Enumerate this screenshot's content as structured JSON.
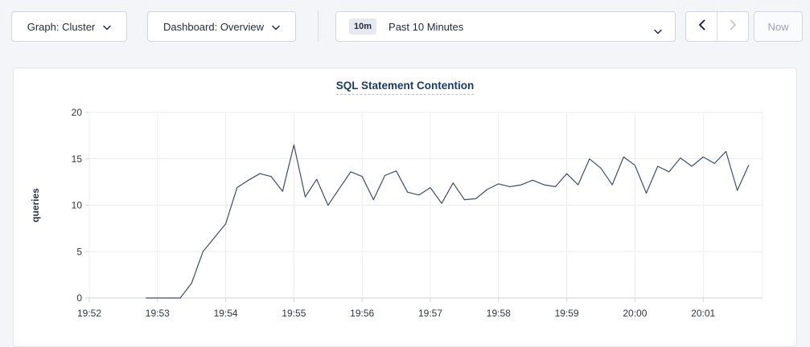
{
  "page": {
    "background": "#f4f5f9"
  },
  "toolbar": {
    "graph_dropdown": {
      "label": "Graph: Cluster",
      "icon": "chevron-down-icon"
    },
    "dashboard_dropdown": {
      "label": "Dashboard: Overview",
      "icon": "chevron-down-icon"
    },
    "time_picker": {
      "badge": "10m",
      "label": "Past 10 Minutes",
      "icon": "chevron-down-icon"
    },
    "prev_button": {
      "icon": "chevron-left-icon",
      "enabled": true
    },
    "next_button": {
      "icon": "chevron-right-icon",
      "enabled": false
    },
    "now_button": {
      "label": "Now",
      "enabled": false
    }
  },
  "chart_data": {
    "type": "line",
    "title": "SQL Statement Contention",
    "xlabel": "",
    "ylabel": "queries",
    "ylim": [
      0,
      20
    ],
    "yticks": [
      0,
      5,
      10,
      15,
      20
    ],
    "xticks": [
      "19:52",
      "19:53",
      "19:54",
      "19:55",
      "19:56",
      "19:57",
      "19:58",
      "19:59",
      "20:00",
      "20:01"
    ],
    "grid": true,
    "legend": "none",
    "series": [
      {
        "name": "SQL Statement Contention",
        "start_time": "19:52:50",
        "interval_seconds": 10,
        "values": [
          0,
          0,
          0,
          0,
          1.6,
          5,
          6.5,
          8,
          11.9,
          12.7,
          13.4,
          13.1,
          11.5,
          16.5,
          10.9,
          12.8,
          10,
          11.8,
          13.6,
          13.1,
          10.6,
          13.2,
          13.7,
          11.4,
          11.1,
          11.9,
          10.2,
          12.4,
          10.6,
          10.7,
          11.7,
          12.3,
          12,
          12.2,
          12.7,
          12.2,
          12,
          13.4,
          12.2,
          15,
          14,
          12.2,
          15.2,
          14.3,
          11.3,
          14.2,
          13.6,
          15.1,
          14.2,
          15.2,
          14.5,
          15.8,
          11.6,
          14.3
        ]
      }
    ],
    "colors": {
      "line": "#414c66",
      "grid": "#ececec",
      "axis": "#d2d5db",
      "title": "#1f3a66",
      "tick_label": "#30363f",
      "ylabel_color": "#16191f"
    }
  }
}
